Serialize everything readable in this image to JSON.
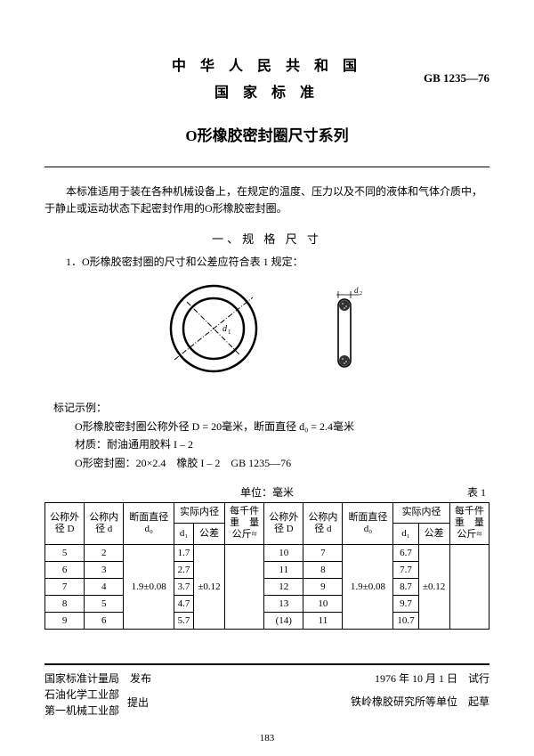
{
  "header": {
    "country": "中 华 人 民 共 和 国",
    "label": "国 家 标 准",
    "code": "GB 1235—76"
  },
  "title": "O形橡胶密封圈尺寸系列",
  "intro": "本标准适用于装在各种机械设备上，在规定的温度、压力以及不同的液体和气体介质中，于静止或运动状态下起密封作用的O形橡胶密封圈。",
  "section1": "一、规 格 尺 寸",
  "item1": "1．O形橡胶密封圈的尺寸和公差应符合表 1 规定：",
  "fig": {
    "d1_label": "d₁",
    "d2_label": "d₂",
    "ring_outer_r": 48,
    "ring_inner_r": 34,
    "stroke": "#000000",
    "cs_height": 78,
    "cs_width": 14
  },
  "notes": {
    "heading": "标记示例：",
    "line1": "O形橡胶密封圈公称外径 D = 20毫米，断面直径 d₀ = 2.4毫米",
    "line2": "材质：耐油通用胶料 I – 2",
    "line3": "O形密封圈：20×2.4　橡胶 I – 2　GB 1235—76"
  },
  "unit_label": "单位：毫米",
  "table1_label": "表 1",
  "table": {
    "h": {
      "outerD": "公称外\n径 D",
      "innerd": "公称内\n径 d",
      "section": "断面直径\nd₀",
      "actual": "实际内径",
      "perK": "每千件\n重　量\n公斤≈",
      "d1": "d₁",
      "tol": "公差"
    },
    "left_d0": "1.9±0.08",
    "left_tol": "±0.12",
    "left_rows": [
      {
        "D": "5",
        "d": "2",
        "d1": "1.7"
      },
      {
        "D": "6",
        "d": "3",
        "d1": "2.7"
      },
      {
        "D": "7",
        "d": "4",
        "d1": "3.7"
      },
      {
        "D": "8",
        "d": "5",
        "d1": "4.7"
      },
      {
        "D": "9",
        "d": "6",
        "d1": "5.7"
      }
    ],
    "right_d0": "1.9±0.08",
    "right_tol": "±0.12",
    "right_rows": [
      {
        "D": "10",
        "d": "7",
        "d1": "6.7"
      },
      {
        "D": "11",
        "d": "8",
        "d1": "7.7"
      },
      {
        "D": "12",
        "d": "9",
        "d1": "8.7"
      },
      {
        "D": "13",
        "d": "10",
        "d1": "9.7"
      },
      {
        "D": "(14)",
        "d": "11",
        "d1": "10.7"
      }
    ]
  },
  "footer": {
    "issue_org1": "国家标准计量局",
    "issue_label": "发布",
    "issue_org2a": "石油化学工业部",
    "issue_org2b": "第一机械工业部",
    "propose_label": "提出",
    "date": "1976 年 10 月 1 日",
    "trial": "试行",
    "draft_org": "铁岭橡胶研究所等单位",
    "draft_label": "起草"
  },
  "page_num": "183"
}
